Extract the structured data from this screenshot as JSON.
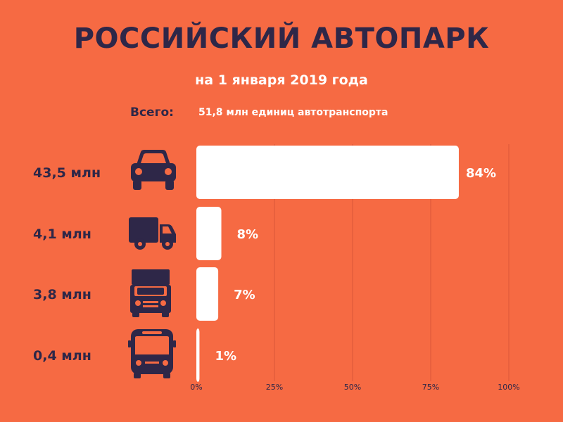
{
  "header": {
    "title": "РОССИЙСКИЙ АВТОПАРК",
    "subtitle": "на 1 января 2019 года",
    "total_label": "Всего:",
    "total_value": "51,8 млн единиц автотранспорта"
  },
  "colors": {
    "background": "#F66A43",
    "dark": "#2E2748",
    "bar": "#FFFFFF",
    "grid": "#D9553A"
  },
  "chart_data": {
    "type": "bar",
    "orientation": "horizontal",
    "title": "",
    "xlabel": "",
    "ylabel": "",
    "xlim": [
      0,
      100
    ],
    "x_ticks": [
      "0%",
      "25%",
      "50%",
      "75%",
      "100%"
    ],
    "grid": true,
    "categories": [
      "43,5 млн",
      "4,1 млн",
      "3,8 млн",
      "0,4 млн"
    ],
    "icons": [
      "car-icon",
      "van-icon",
      "truck-icon",
      "bus-icon"
    ],
    "values": [
      84,
      8,
      7,
      1
    ],
    "value_labels": [
      "84%",
      "8%",
      "7%",
      "1%"
    ]
  }
}
